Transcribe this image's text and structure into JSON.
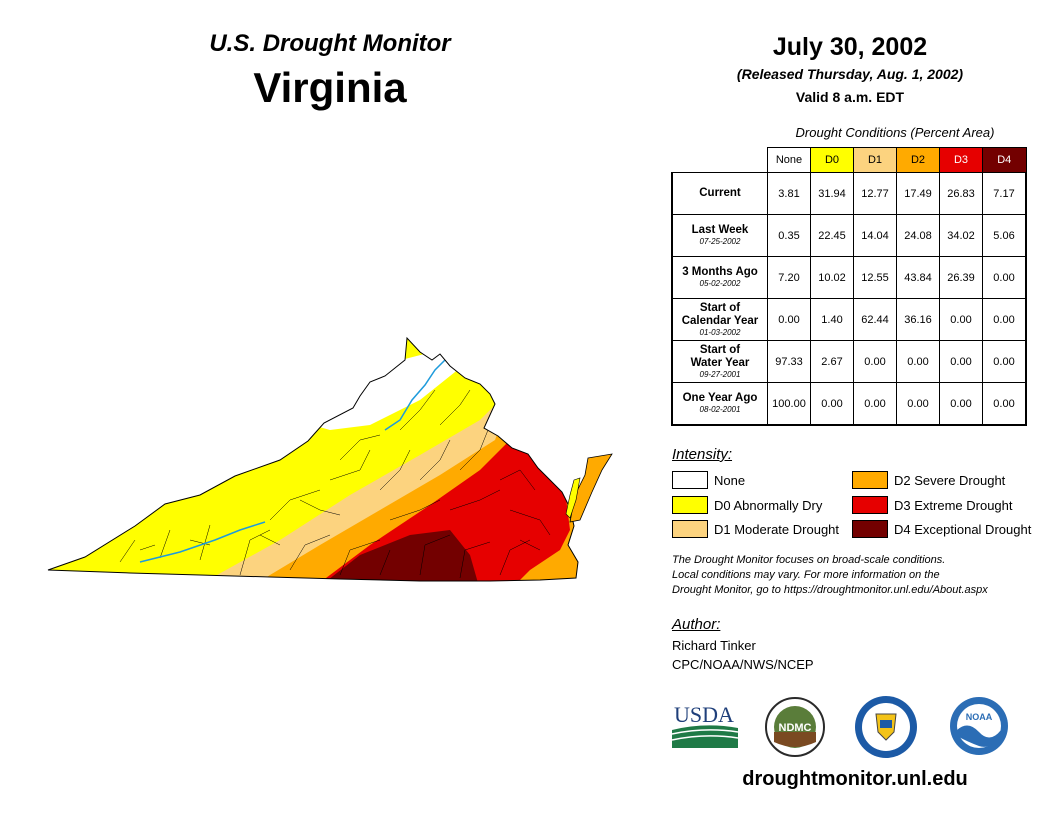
{
  "header": {
    "monitor": "U.S. Drought Monitor",
    "state": "Virginia",
    "date": "July 30, 2002",
    "released": "(Released Thursday, Aug. 1, 2002)",
    "valid": "Valid 8 a.m. EDT"
  },
  "table": {
    "caption": "Drought Conditions (Percent Area)",
    "columns": [
      {
        "label": "None",
        "color": "#ffffff",
        "text_color": "#000000"
      },
      {
        "label": "D0",
        "color": "#ffff00",
        "text_color": "#000000"
      },
      {
        "label": "D1",
        "color": "#fcd37f",
        "text_color": "#000000"
      },
      {
        "label": "D2",
        "color": "#ffaa00",
        "text_color": "#000000"
      },
      {
        "label": "D3",
        "color": "#e60000",
        "text_color": "#ffffff"
      },
      {
        "label": "D4",
        "color": "#730000",
        "text_color": "#ffffff"
      }
    ],
    "rows": [
      {
        "label": "Current",
        "label2": "",
        "date": "",
        "values": [
          "3.81",
          "31.94",
          "12.77",
          "17.49",
          "26.83",
          "7.17"
        ]
      },
      {
        "label": "Last Week",
        "label2": "",
        "date": "07-25-2002",
        "values": [
          "0.35",
          "22.45",
          "14.04",
          "24.08",
          "34.02",
          "5.06"
        ]
      },
      {
        "label": "3 Months Ago",
        "label2": "",
        "date": "05-02-2002",
        "values": [
          "7.20",
          "10.02",
          "12.55",
          "43.84",
          "26.39",
          "0.00"
        ]
      },
      {
        "label": "Start of",
        "label2": "Calendar Year",
        "date": "01-03-2002",
        "values": [
          "0.00",
          "1.40",
          "62.44",
          "36.16",
          "0.00",
          "0.00"
        ]
      },
      {
        "label": "Start of",
        "label2": "Water Year",
        "date": "09-27-2001",
        "values": [
          "97.33",
          "2.67",
          "0.00",
          "0.00",
          "0.00",
          "0.00"
        ]
      },
      {
        "label": "One Year Ago",
        "label2": "",
        "date": "08-02-2001",
        "values": [
          "100.00",
          "0.00",
          "0.00",
          "0.00",
          "0.00",
          "0.00"
        ]
      }
    ]
  },
  "legend": {
    "title": "Intensity:",
    "items": [
      {
        "label": "None",
        "color": "#ffffff"
      },
      {
        "label": "D0 Abnormally Dry",
        "color": "#ffff00"
      },
      {
        "label": "D1 Moderate Drought",
        "color": "#fcd37f"
      },
      {
        "label": "D2 Severe Drought",
        "color": "#ffaa00"
      },
      {
        "label": "D3 Extreme Drought",
        "color": "#e60000"
      },
      {
        "label": "D4 Exceptional Drought",
        "color": "#730000"
      }
    ]
  },
  "note": {
    "line1": "The Drought Monitor focuses on broad-scale conditions.",
    "line2": "Local conditions may vary. For more information on the",
    "line3": "Drought Monitor, go to https://droughtmonitor.unl.edu/About.aspx"
  },
  "author": {
    "title": "Author:",
    "name": "Richard Tinker",
    "org": "CPC/NOAA/NWS/NCEP"
  },
  "logos": {
    "usda": "USDA",
    "ndmc": "NDMC",
    "noaa": "NOAA"
  },
  "footer": {
    "url": "droughtmonitor.unl.edu"
  },
  "colors": {
    "none": "#ffffff",
    "d0": "#ffff00",
    "d1": "#fcd37f",
    "d2": "#ffaa00",
    "d3": "#e60000",
    "d4": "#730000",
    "river": "#1e9bdc"
  }
}
